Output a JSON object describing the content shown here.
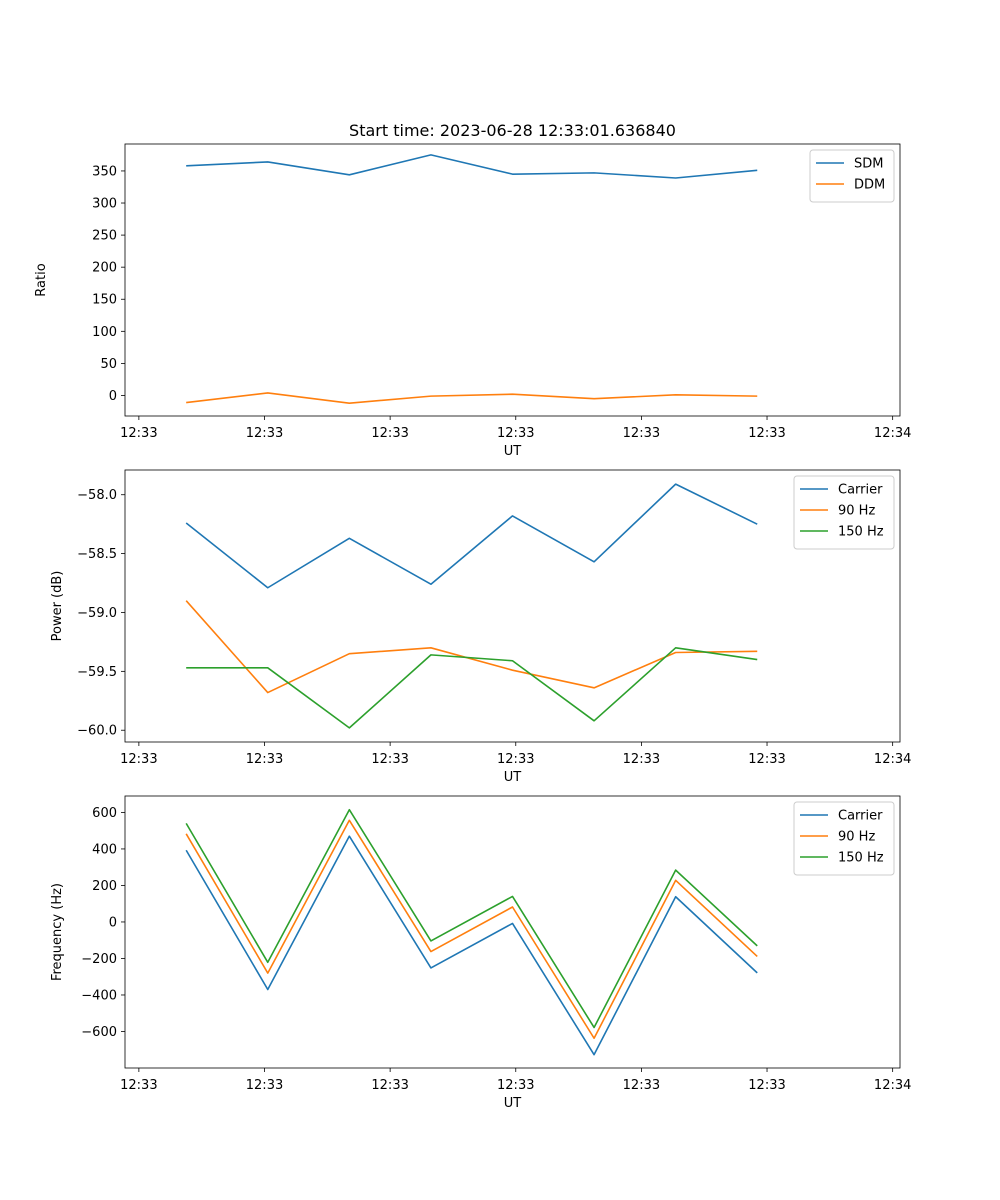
{
  "title": "Start time: 2023-06-28 12:33:01.636840",
  "chart_data": [
    {
      "type": "line",
      "x": [
        1,
        2,
        3,
        4,
        5,
        6,
        7,
        8
      ],
      "xticks": [
        "12:33",
        "12:33",
        "12:33",
        "12:33",
        "12:33",
        "12:33",
        "12:34"
      ],
      "xlabel": "UT",
      "ylabel": "Ratio",
      "ylim": [
        -32,
        392
      ],
      "yticks": [
        0,
        50,
        100,
        150,
        200,
        250,
        300,
        350
      ],
      "legend": "top-right",
      "series": [
        {
          "name": "SDM",
          "color": "#1f77b4",
          "values": [
            358,
            364,
            344,
            375,
            345,
            347,
            339,
            351
          ]
        },
        {
          "name": "DDM",
          "color": "#ff7f0e",
          "values": [
            -11,
            4,
            -12,
            -1,
            2,
            -5,
            1,
            -1
          ]
        }
      ]
    },
    {
      "type": "line",
      "x": [
        1,
        2,
        3,
        4,
        5,
        6,
        7,
        8
      ],
      "xticks": [
        "12:33",
        "12:33",
        "12:33",
        "12:33",
        "12:33",
        "12:33",
        "12:34"
      ],
      "xlabel": "UT",
      "ylabel": "Power (dB)",
      "ylim": [
        -60.1,
        -57.79
      ],
      "yticks": [
        -60.0,
        -59.5,
        -59.0,
        -58.5,
        -58.0
      ],
      "legend": "top-right",
      "series": [
        {
          "name": "Carrier",
          "color": "#1f77b4",
          "values": [
            -58.24,
            -58.79,
            -58.37,
            -58.76,
            -58.18,
            -58.57,
            -57.91,
            -58.25
          ]
        },
        {
          "name": "90 Hz",
          "color": "#ff7f0e",
          "values": [
            -58.9,
            -59.68,
            -59.35,
            -59.3,
            -59.49,
            -59.64,
            -59.34,
            -59.33
          ]
        },
        {
          "name": "150 Hz",
          "color": "#2ca02c",
          "values": [
            -59.47,
            -59.47,
            -59.98,
            -59.36,
            -59.41,
            -59.92,
            -59.3,
            -59.4
          ]
        }
      ]
    },
    {
      "type": "line",
      "x": [
        1,
        2,
        3,
        4,
        5,
        6,
        7,
        8
      ],
      "xticks": [
        "12:33",
        "12:33",
        "12:33",
        "12:33",
        "12:33",
        "12:33",
        "12:34"
      ],
      "xlabel": "UT",
      "ylabel": "Frequency (Hz)",
      "ylim": [
        -800,
        690
      ],
      "yticks": [
        -600,
        -400,
        -200,
        0,
        200,
        400,
        600
      ],
      "legend": "top-right",
      "series": [
        {
          "name": "Carrier",
          "color": "#1f77b4",
          "values": [
            393,
            -370,
            470,
            -252,
            -8,
            -727,
            138,
            -279
          ]
        },
        {
          "name": "90 Hz",
          "color": "#ff7f0e",
          "values": [
            483,
            -280,
            557,
            -162,
            82,
            -637,
            228,
            -189
          ]
        },
        {
          "name": "150 Hz",
          "color": "#2ca02c",
          "values": [
            540,
            -221,
            615,
            -104,
            140,
            -578,
            284,
            -131
          ]
        }
      ]
    }
  ]
}
